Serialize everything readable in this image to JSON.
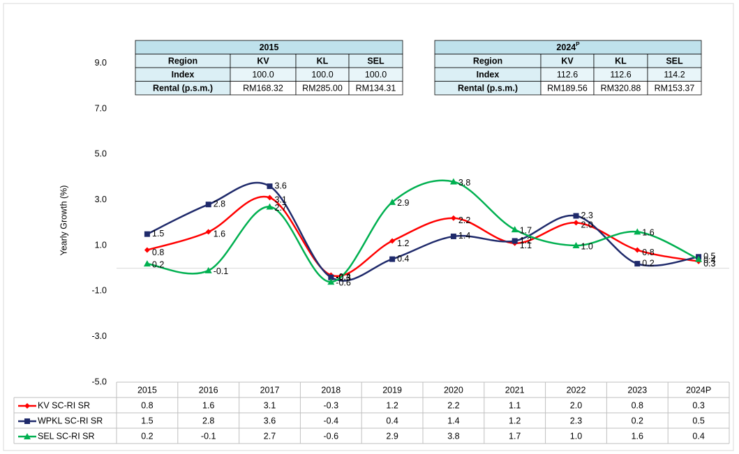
{
  "chart_data": {
    "type": "line",
    "y_label": "Yearly Growth (%)",
    "categories": [
      "2015",
      "2016",
      "2017",
      "2018",
      "2019",
      "2020",
      "2021",
      "2022",
      "2023",
      "2024P"
    ],
    "series": [
      {
        "name": "KV SC-RI SR",
        "color": "#ff0000",
        "marker": "diamond",
        "values": [
          0.8,
          1.6,
          3.1,
          -0.3,
          1.2,
          2.2,
          1.1,
          2.0,
          0.8,
          0.3
        ],
        "value_labels": [
          "0.8",
          "1.6",
          "3.1",
          "-0.3",
          "1.2",
          "2.2",
          "1.1",
          "2.0",
          "0.8",
          "0.3"
        ]
      },
      {
        "name": "WPKL SC-RI SR",
        "color": "#1f2a6b",
        "marker": "square",
        "values": [
          1.5,
          2.8,
          3.6,
          -0.4,
          0.4,
          1.4,
          1.2,
          2.3,
          0.2,
          0.5
        ],
        "value_labels": [
          "1.5",
          "2.8",
          "3.6",
          "-0.4",
          "0.4",
          "1.4",
          "1.2",
          "2.3",
          "0.2",
          "0.5"
        ]
      },
      {
        "name": "SEL SC-RI SR",
        "color": "#00b050",
        "marker": "triangle",
        "values": [
          0.2,
          -0.1,
          2.7,
          -0.6,
          2.9,
          3.8,
          1.7,
          1.0,
          1.6,
          0.4
        ],
        "value_labels": [
          "0.2",
          "-0.1",
          "2.7",
          "-0.6",
          "2.9",
          "3.8",
          "1.7",
          "1.0",
          "1.6",
          "0.4"
        ]
      }
    ],
    "ylim": [
      -5,
      10
    ],
    "yticks": [
      {
        "value": -5,
        "label": "-5.0"
      },
      {
        "value": -3,
        "label": "-3.0"
      },
      {
        "value": -1,
        "label": "-1.0"
      },
      {
        "value": 1,
        "label": "1.0"
      },
      {
        "value": 3,
        "label": "3.0"
      },
      {
        "value": 5,
        "label": "5.0"
      },
      {
        "value": 7,
        "label": "7.0"
      },
      {
        "value": 9,
        "label": "9.0"
      }
    ],
    "grid": false
  },
  "tables": [
    {
      "title": "2015",
      "header": [
        "Region",
        "KV",
        "KL",
        "SEL"
      ],
      "rows": [
        [
          "Index",
          "100.0",
          "100.0",
          "100.0"
        ],
        [
          "Rental (p.s.m.)",
          "RM168.32",
          "RM285.00",
          "RM134.31"
        ]
      ]
    },
    {
      "title": "2024",
      "title_sup": "P",
      "header": [
        "Region",
        "KV",
        "KL",
        "SEL"
      ],
      "rows": [
        [
          "Index",
          "112.6",
          "112.6",
          "114.2"
        ],
        [
          "Rental (p.s.m.)",
          "RM189.56",
          "RM320.88",
          "RM153.37"
        ]
      ]
    }
  ]
}
